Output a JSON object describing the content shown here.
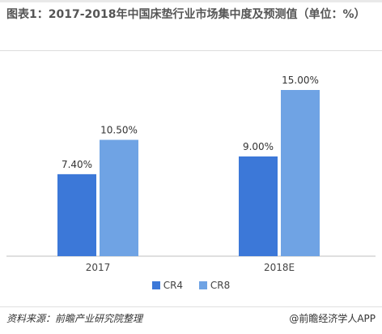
{
  "title": "图表1：2017-2018年中国床垫行业市场集中度及预测值（单位：%）",
  "source": "资料来源：前瞻产业研究院整理",
  "watermark": "@前瞻经济学人APP",
  "colors": {
    "CR4": "#3c78d8",
    "CR8": "#6fa3e4"
  },
  "chart_data": {
    "type": "bar",
    "categories": [
      "2017",
      "2018E"
    ],
    "series": [
      {
        "name": "CR4",
        "values": [
          7.4,
          9.0
        ]
      },
      {
        "name": "CR8",
        "values": [
          10.5,
          15.0
        ]
      }
    ],
    "data_labels": [
      [
        "7.40%",
        "9.00%"
      ],
      [
        "10.50%",
        "15.00%"
      ]
    ],
    "ylim": [
      0,
      16
    ],
    "legend_position": "bottom",
    "grid": false
  }
}
